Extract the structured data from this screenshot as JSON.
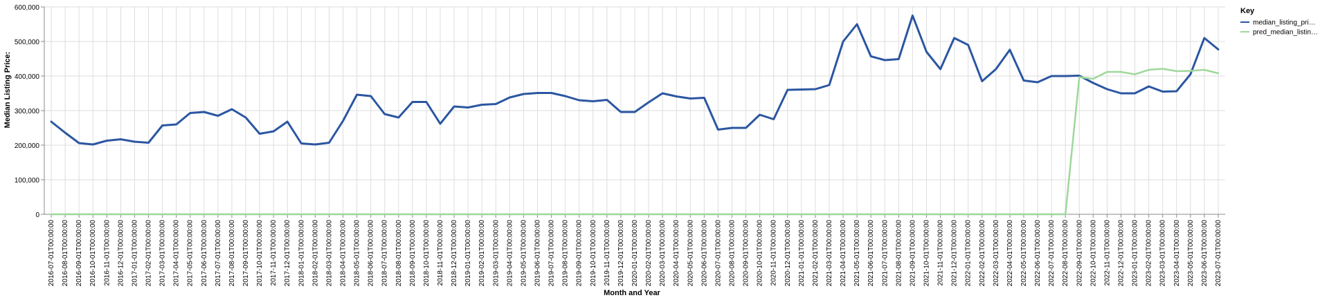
{
  "chart_data": {
    "type": "line",
    "xlabel": "Month and Year",
    "ylabel": "Median Listing Price:",
    "ylim": [
      0,
      600000
    ],
    "yticks": [
      0,
      100000,
      200000,
      300000,
      400000,
      500000,
      600000
    ],
    "ytick_labels": [
      "0",
      "100,000",
      "200,000",
      "300,000",
      "400,000",
      "500,000",
      "600,000"
    ],
    "grid": true,
    "legend": {
      "title": "Key",
      "placement": "right"
    },
    "x": [
      "2016-07-01T00:00:00",
      "2016-08-01T00:00:00",
      "2016-09-01T00:00:00",
      "2016-10-01T00:00:00",
      "2016-11-01T00:00:00",
      "2016-12-01T00:00:00",
      "2017-01-01T00:00:00",
      "2017-02-01T00:00:00",
      "2017-03-01T00:00:00",
      "2017-04-01T00:00:00",
      "2017-05-01T00:00:00",
      "2017-06-01T00:00:00",
      "2017-07-01T00:00:00",
      "2017-08-01T00:00:00",
      "2017-09-01T00:00:00",
      "2017-10-01T00:00:00",
      "2017-11-01T00:00:00",
      "2017-12-01T00:00:00",
      "2018-01-01T00:00:00",
      "2018-02-01T00:00:00",
      "2018-03-01T00:00:00",
      "2018-04-01T00:00:00",
      "2018-05-01T00:00:00",
      "2018-06-01T00:00:00",
      "2018-07-01T00:00:00",
      "2018-08-01T00:00:00",
      "2018-09-01T00:00:00",
      "2018-10-01T00:00:00",
      "2018-11-01T00:00:00",
      "2018-12-01T00:00:00",
      "2019-01-01T00:00:00",
      "2019-02-01T00:00:00",
      "2019-03-01T00:00:00",
      "2019-04-01T00:00:00",
      "2019-05-01T00:00:00",
      "2019-06-01T00:00:00",
      "2019-07-01T00:00:00",
      "2019-08-01T00:00:00",
      "2019-09-01T00:00:00",
      "2019-10-01T00:00:00",
      "2019-11-01T00:00:00",
      "2019-12-01T00:00:00",
      "2020-01-01T00:00:00",
      "2020-02-01T00:00:00",
      "2020-03-01T00:00:00",
      "2020-04-01T00:00:00",
      "2020-05-01T00:00:00",
      "2020-06-01T00:00:00",
      "2020-07-01T00:00:00",
      "2020-08-01T00:00:00",
      "2020-09-01T00:00:00",
      "2020-10-01T00:00:00",
      "2020-11-01T00:00:00",
      "2020-12-01T00:00:00",
      "2021-01-01T00:00:00",
      "2021-02-01T00:00:00",
      "2021-03-01T00:00:00",
      "2021-04-01T00:00:00",
      "2021-05-01T00:00:00",
      "2021-06-01T00:00:00",
      "2021-07-01T00:00:00",
      "2021-08-01T00:00:00",
      "2021-09-01T00:00:00",
      "2021-10-01T00:00:00",
      "2021-11-01T00:00:00",
      "2021-12-01T00:00:00",
      "2022-01-01T00:00:00",
      "2022-02-01T00:00:00",
      "2022-03-01T00:00:00",
      "2022-04-01T00:00:00",
      "2022-05-01T00:00:00",
      "2022-06-01T00:00:00",
      "2022-07-01T00:00:00",
      "2022-08-01T00:00:00",
      "2022-09-01T00:00:00",
      "2022-10-01T00:00:00",
      "2022-11-01T00:00:00",
      "2022-12-01T00:00:00",
      "2023-01-01T00:00:00",
      "2023-02-01T00:00:00",
      "2023-03-01T00:00:00",
      "2023-04-01T00:00:00",
      "2023-05-01T00:00:00",
      "2023-06-01T00:00:00",
      "2023-07-01T00:00:00"
    ],
    "series": [
      {
        "name": "median_listing_pri…",
        "color": "#2b56a1",
        "values": [
          268000,
          236000,
          206000,
          202000,
          213000,
          217000,
          210000,
          207000,
          257000,
          260000,
          293000,
          296000,
          285000,
          304000,
          280000,
          233000,
          240000,
          268000,
          205000,
          202000,
          207000,
          270000,
          346000,
          342000,
          290000,
          280000,
          325000,
          325000,
          262000,
          312000,
          309000,
          317000,
          319000,
          338000,
          348000,
          351000,
          351000,
          342000,
          330000,
          327000,
          331000,
          296000,
          296000,
          324000,
          350000,
          341000,
          335000,
          337000,
          245000,
          250000,
          250000,
          288000,
          275000,
          360000,
          361000,
          362000,
          374000,
          500000,
          550000,
          457000,
          446000,
          449000,
          575000,
          470000,
          420000,
          510000,
          490000,
          385000,
          420000,
          476000,
          387000,
          382000,
          400000,
          400000,
          401000,
          380000,
          362000,
          350000,
          350000,
          370000,
          355000,
          356000,
          405000,
          510000,
          477000
        ]
      },
      {
        "name": "pred_median_listin…",
        "color": "#9ed89a",
        "values": [
          0,
          0,
          0,
          0,
          0,
          0,
          0,
          0,
          0,
          0,
          0,
          0,
          0,
          0,
          0,
          0,
          0,
          0,
          0,
          0,
          0,
          0,
          0,
          0,
          0,
          0,
          0,
          0,
          0,
          0,
          0,
          0,
          0,
          0,
          0,
          0,
          0,
          0,
          0,
          0,
          0,
          0,
          0,
          0,
          0,
          0,
          0,
          0,
          0,
          0,
          0,
          0,
          0,
          0,
          0,
          0,
          0,
          0,
          0,
          0,
          0,
          0,
          0,
          0,
          0,
          0,
          0,
          0,
          0,
          0,
          0,
          0,
          0,
          0,
          397000,
          392000,
          412000,
          412000,
          405000,
          418000,
          421000,
          414000,
          415000,
          418000,
          408000
        ]
      }
    ]
  }
}
